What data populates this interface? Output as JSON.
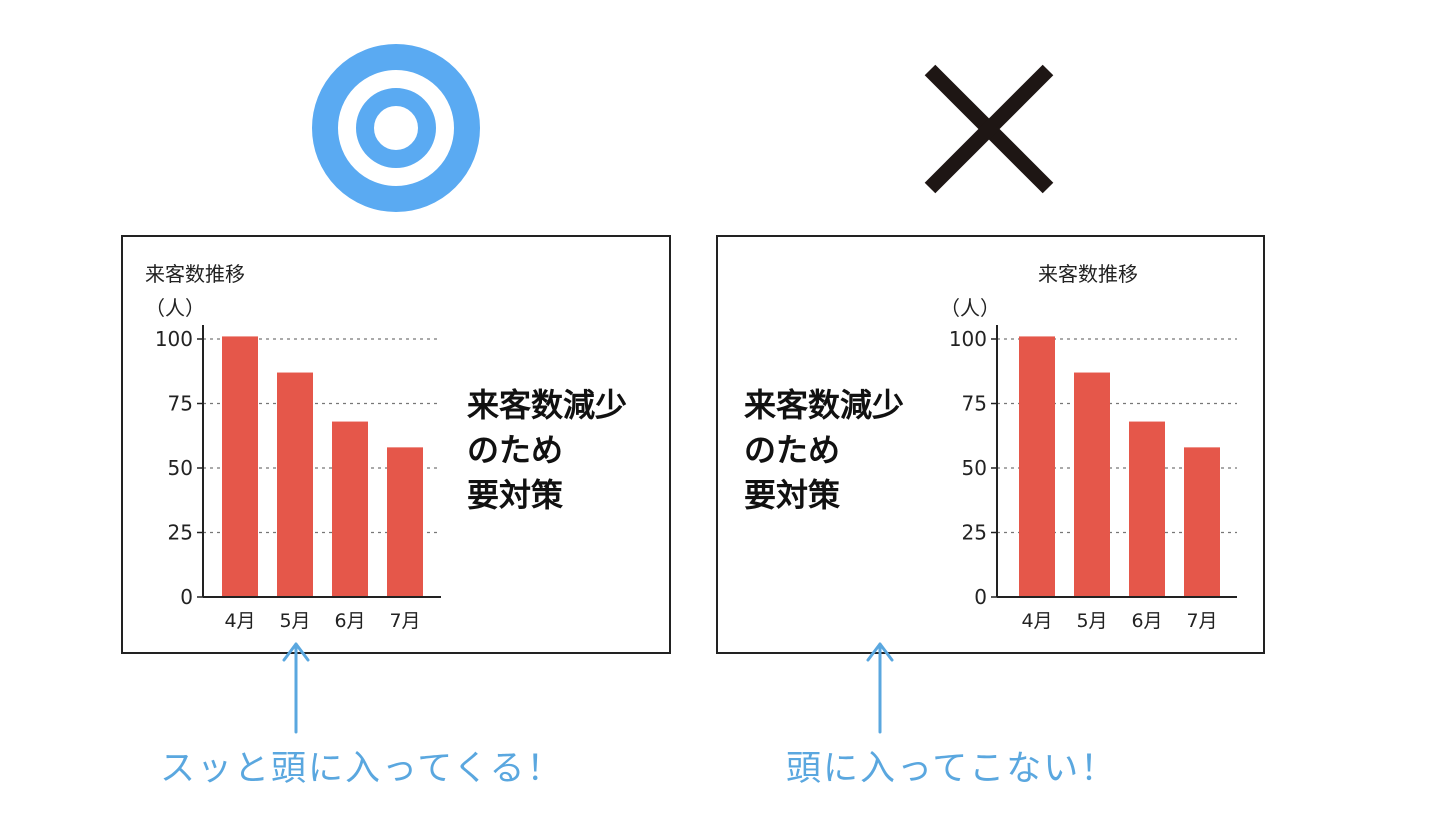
{
  "good_example": {
    "mark_icon": "double-circle-icon",
    "mark_color": "#5aaaf2",
    "message_lines": [
      "来客数減少",
      "のため",
      "要対策"
    ],
    "caption": "スッと頭に入ってくる！",
    "caption_color": "#5aa7df",
    "arrow_icon": "up-arrow-icon"
  },
  "bad_example": {
    "mark_icon": "cross-mark-icon",
    "mark_color": "#1e1614",
    "message_lines": [
      "来客数減少",
      "のため",
      "要対策"
    ],
    "caption": "頭に入ってこない！",
    "caption_color": "#5aa7df",
    "arrow_icon": "up-arrow-icon"
  },
  "chart_data": [
    {
      "type": "bar",
      "title": "来客数推移",
      "ylabel": "（人）",
      "categories": [
        "4月",
        "5月",
        "6月",
        "7月"
      ],
      "values": [
        101,
        87,
        68,
        58
      ],
      "ylim": [
        0,
        100
      ],
      "yticks": [
        0,
        25,
        50,
        75,
        100
      ],
      "bar_color": "#e5574a",
      "grid": "dashed horizontal",
      "title_placement": "top-left"
    },
    {
      "type": "bar",
      "title": "来客数推移",
      "ylabel": "（人）",
      "categories": [
        "4月",
        "5月",
        "6月",
        "7月"
      ],
      "values": [
        101,
        87,
        68,
        58
      ],
      "ylim": [
        0,
        100
      ],
      "yticks": [
        0,
        25,
        50,
        75,
        100
      ],
      "bar_color": "#e5574a",
      "grid": "dashed horizontal",
      "title_placement": "top-center"
    }
  ]
}
